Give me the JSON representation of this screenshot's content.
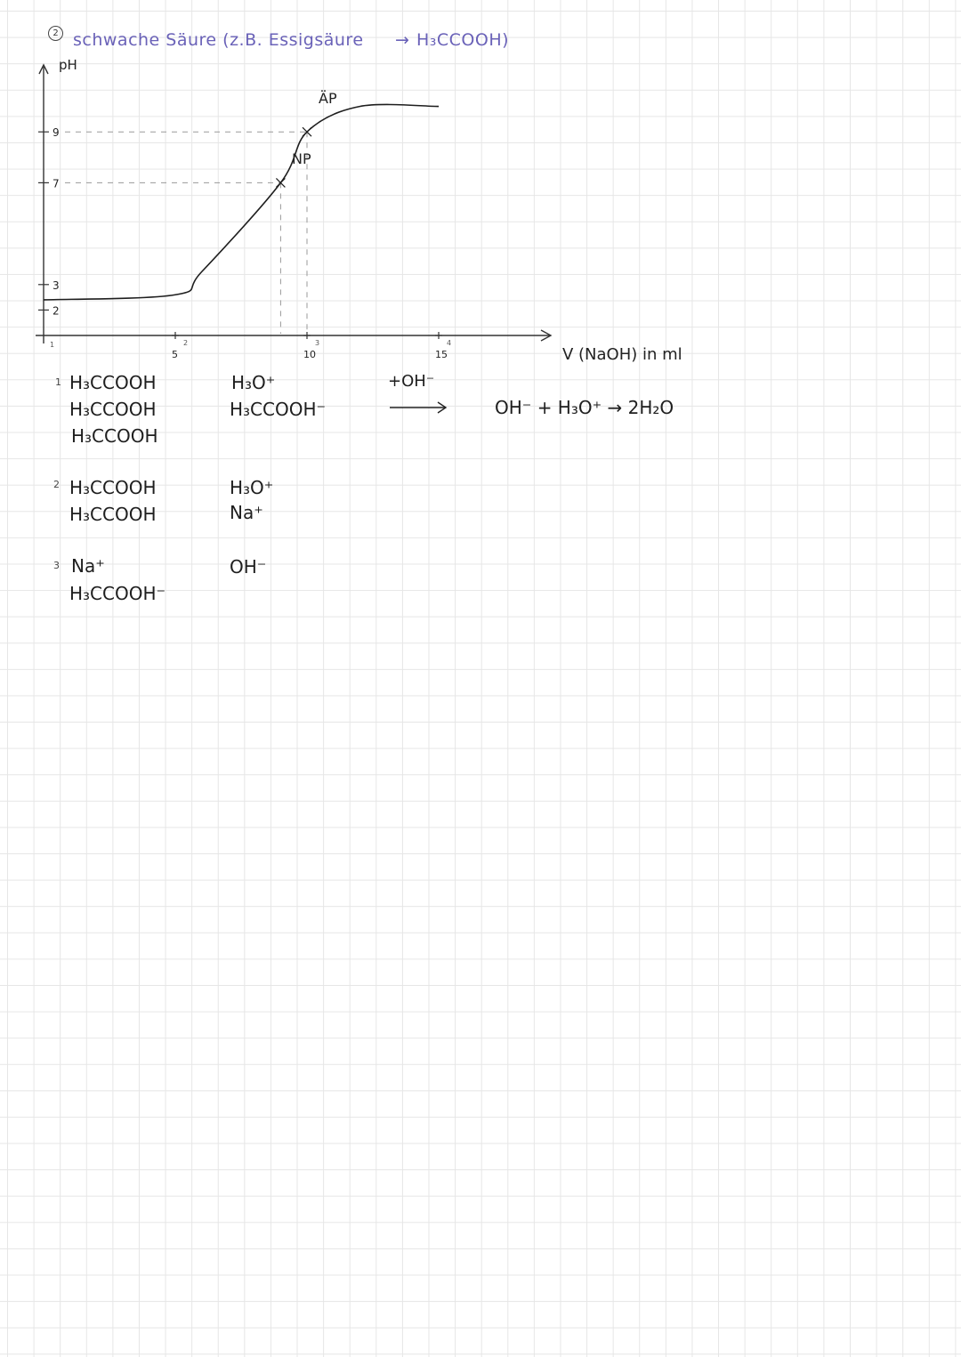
{
  "header": {
    "number": "2",
    "text": "schwache Säure (z.B. Essigsäure",
    "arrow": "→",
    "formula": "H₃CCOOH)"
  },
  "chart_data": {
    "type": "line",
    "ylabel": "pH",
    "xlabel": "V (NaOH) in ml",
    "y_ticks": [
      2,
      3,
      7,
      9
    ],
    "x_ticks": [
      5,
      10,
      15
    ],
    "x_tick_subscripts": [
      "1",
      "2",
      "3",
      "4"
    ],
    "points": [
      {
        "label": "NP",
        "x": 9,
        "y": 7
      },
      {
        "label": "ÄP",
        "x": 10,
        "y": 9
      }
    ],
    "curve": {
      "x": [
        0,
        5,
        6,
        9,
        10,
        12,
        15
      ],
      "y": [
        2.4,
        2.6,
        3.5,
        7,
        9,
        10,
        10
      ]
    }
  },
  "stages": [
    {
      "num": "1",
      "left": [
        "H₃CCOOH",
        "H₃CCOOH",
        "H₃CCOOH"
      ],
      "right": [
        "H₃O⁺",
        "H₃CCOOH⁻"
      ]
    },
    {
      "num": "2",
      "left": [
        "H₃CCOOH",
        "H₃CCOOH"
      ],
      "right": [
        "H₃O⁺",
        "Na⁺"
      ]
    },
    {
      "num": "3",
      "left": [
        "Na⁺",
        "H₃CCOOH⁻"
      ],
      "right": [
        "OH⁻"
      ]
    }
  ],
  "reaction": {
    "reagent": "+OH⁻",
    "equation": "OH⁻ + H₃O⁺ → 2H₂O"
  },
  "colors": {
    "header_ink": "#6a62b8",
    "ink": "#1e1e1e",
    "grid": "#e6e6e6"
  }
}
